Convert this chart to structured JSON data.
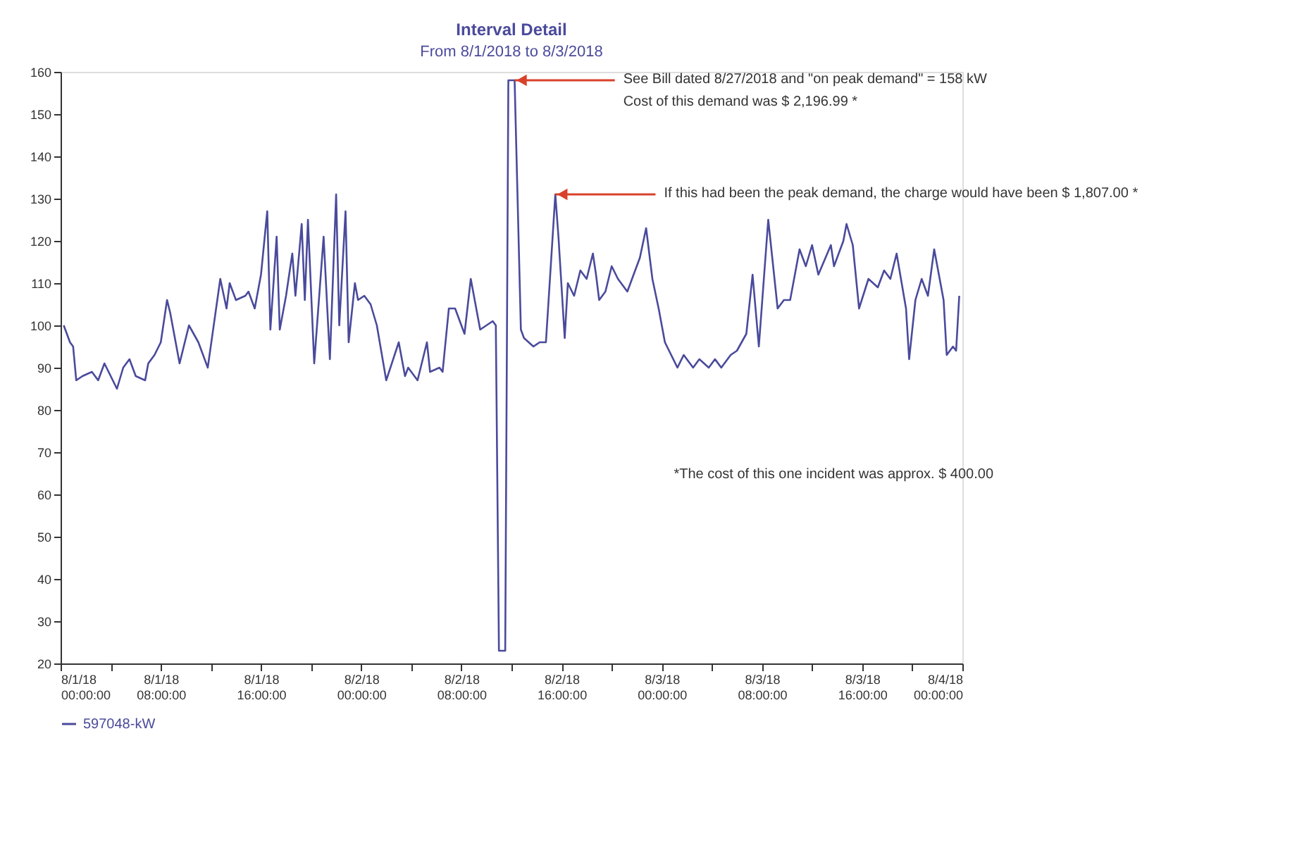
{
  "chart_data": {
    "type": "line",
    "title": "Interval Detail",
    "subtitle": "From 8/1/2018 to 8/3/2018",
    "xlim": [
      "2018-08-01T00:00",
      "2018-08-04T00:00"
    ],
    "xticks": [
      {
        "value": "2018-08-01T00:00",
        "label": "8/1/18 00:00:00"
      },
      {
        "value": "2018-08-01T04:00",
        "label": null
      },
      {
        "value": "2018-08-01T08:00",
        "label": "8/1/18 08:00:00"
      },
      {
        "value": "2018-08-01T12:00",
        "label": null
      },
      {
        "value": "2018-08-01T16:00",
        "label": "8/1/18 16:00:00"
      },
      {
        "value": "2018-08-01T20:00",
        "label": null
      },
      {
        "value": "2018-08-02T00:00",
        "label": "8/2/18 00:00:00"
      },
      {
        "value": "2018-08-02T04:00",
        "label": null
      },
      {
        "value": "2018-08-02T08:00",
        "label": "8/2/18 08:00:00"
      },
      {
        "value": "2018-08-02T12:00",
        "label": null
      },
      {
        "value": "2018-08-02T16:00",
        "label": "8/2/18 16:00:00"
      },
      {
        "value": "2018-08-02T20:00",
        "label": null
      },
      {
        "value": "2018-08-03T00:00",
        "label": "8/3/18 00:00:00"
      },
      {
        "value": "2018-08-03T04:00",
        "label": null
      },
      {
        "value": "2018-08-03T08:00",
        "label": "8/3/18 08:00:00"
      },
      {
        "value": "2018-08-03T12:00",
        "label": null
      },
      {
        "value": "2018-08-03T16:00",
        "label": "8/3/18 16:00:00"
      },
      {
        "value": "2018-08-03T20:00",
        "label": null
      },
      {
        "value": "2018-08-04T00:00",
        "label": "8/4/18 00:00:00"
      }
    ],
    "ylim": [
      20,
      160
    ],
    "yticks": [
      20,
      30,
      40,
      50,
      60,
      70,
      80,
      90,
      100,
      110,
      120,
      130,
      140,
      150,
      160
    ],
    "grid": false,
    "legend": "bottom",
    "x": [
      "2018-08-01T00:15",
      "2018-08-01T00:45",
      "2018-08-01T01:00",
      "2018-08-01T01:15",
      "2018-08-01T01:45",
      "2018-08-01T02:30",
      "2018-08-01T03:00",
      "2018-08-01T03:30",
      "2018-08-01T04:00",
      "2018-08-01T04:30",
      "2018-08-01T05:00",
      "2018-08-01T05:30",
      "2018-08-01T06:00",
      "2018-08-01T06:45",
      "2018-08-01T07:00",
      "2018-08-01T07:30",
      "2018-08-01T08:00",
      "2018-08-01T08:30",
      "2018-08-01T08:45",
      "2018-08-01T09:30",
      "2018-08-01T10:15",
      "2018-08-01T11:00",
      "2018-08-01T11:45",
      "2018-08-01T12:45",
      "2018-08-01T13:15",
      "2018-08-01T13:30",
      "2018-08-01T14:00",
      "2018-08-01T14:45",
      "2018-08-01T15:00",
      "2018-08-01T15:30",
      "2018-08-01T16:00",
      "2018-08-01T16:30",
      "2018-08-01T16:45",
      "2018-08-01T17:15",
      "2018-08-01T17:30",
      "2018-08-01T18:00",
      "2018-08-01T18:30",
      "2018-08-01T18:45",
      "2018-08-01T19:15",
      "2018-08-01T19:30",
      "2018-08-01T19:45",
      "2018-08-01T20:15",
      "2018-08-01T21:00",
      "2018-08-01T21:30",
      "2018-08-01T22:00",
      "2018-08-01T22:15",
      "2018-08-01T22:45",
      "2018-08-01T23:00",
      "2018-08-01T23:30",
      "2018-08-01T23:45",
      "2018-08-02T00:15",
      "2018-08-02T00:45",
      "2018-08-02T01:15",
      "2018-08-02T02:00",
      "2018-08-02T03:00",
      "2018-08-02T03:30",
      "2018-08-02T03:45",
      "2018-08-02T04:30",
      "2018-08-02T05:15",
      "2018-08-02T05:30",
      "2018-08-02T06:15",
      "2018-08-02T06:30",
      "2018-08-02T07:00",
      "2018-08-02T07:30",
      "2018-08-02T08:15",
      "2018-08-02T08:45",
      "2018-08-02T09:30",
      "2018-08-02T10:00",
      "2018-08-02T10:30",
      "2018-08-02T10:45",
      "2018-08-02T11:00",
      "2018-08-02T11:30",
      "2018-08-02T11:45",
      "2018-08-02T12:15",
      "2018-08-02T12:45",
      "2018-08-02T13:00",
      "2018-08-02T13:45",
      "2018-08-02T14:15",
      "2018-08-02T14:45",
      "2018-08-02T15:30",
      "2018-08-02T15:45",
      "2018-08-02T16:15",
      "2018-08-02T16:30",
      "2018-08-02T17:00",
      "2018-08-02T17:30",
      "2018-08-02T18:00",
      "2018-08-02T18:30",
      "2018-08-02T18:45",
      "2018-08-02T19:00",
      "2018-08-02T19:30",
      "2018-08-02T20:00",
      "2018-08-02T20:30",
      "2018-08-02T21:15",
      "2018-08-02T22:15",
      "2018-08-02T22:45",
      "2018-08-02T23:15",
      "2018-08-02T23:45",
      "2018-08-03T00:15",
      "2018-08-03T00:45",
      "2018-08-03T01:15",
      "2018-08-03T01:45",
      "2018-08-03T02:30",
      "2018-08-03T03:00",
      "2018-08-03T03:45",
      "2018-08-03T04:15",
      "2018-08-03T04:45",
      "2018-08-03T05:30",
      "2018-08-03T06:00",
      "2018-08-03T06:45",
      "2018-08-03T07:15",
      "2018-08-03T07:45",
      "2018-08-03T08:30",
      "2018-08-03T09:15",
      "2018-08-03T09:45",
      "2018-08-03T10:15",
      "2018-08-03T11:00",
      "2018-08-03T11:30",
      "2018-08-03T12:00",
      "2018-08-03T12:30",
      "2018-08-03T13:30",
      "2018-08-03T13:45",
      "2018-08-03T14:30",
      "2018-08-03T14:45",
      "2018-08-03T15:15",
      "2018-08-03T15:45",
      "2018-08-03T16:30",
      "2018-08-03T17:15",
      "2018-08-03T17:45",
      "2018-08-03T18:15",
      "2018-08-03T18:45",
      "2018-08-03T19:30",
      "2018-08-03T19:45",
      "2018-08-03T20:15",
      "2018-08-03T20:45",
      "2018-08-03T21:15",
      "2018-08-03T21:45",
      "2018-08-03T22:30",
      "2018-08-03T22:45",
      "2018-08-03T23:15",
      "2018-08-03T23:30",
      "2018-08-03T23:45"
    ],
    "series": [
      {
        "name": "597048-kW",
        "color": "#4a4a9c",
        "values": [
          100,
          96,
          95,
          87,
          88,
          89,
          87,
          91,
          88,
          85,
          90,
          92,
          88,
          87,
          91,
          93,
          96,
          106,
          103,
          91,
          100,
          96,
          90,
          111,
          104,
          110,
          106,
          107,
          108,
          104,
          112,
          127,
          99,
          121,
          99,
          107,
          117,
          107,
          124,
          106,
          125,
          91,
          121,
          92,
          131,
          100,
          127,
          96,
          110,
          106,
          107,
          105,
          100,
          87,
          96,
          88,
          90,
          87,
          96,
          89,
          90,
          89,
          104,
          104,
          98,
          111,
          99,
          100,
          101,
          100,
          23,
          23,
          158,
          158,
          99,
          97,
          95,
          96,
          96,
          131,
          121,
          97,
          110,
          107,
          113,
          111,
          117,
          112,
          106,
          108,
          114,
          111,
          108,
          116,
          123,
          111,
          104,
          96,
          93,
          90,
          93,
          90,
          92,
          90,
          92,
          90,
          93,
          94,
          98,
          112,
          95,
          125,
          104,
          106,
          106,
          118,
          114,
          119,
          112,
          119,
          114,
          120,
          124,
          119,
          104,
          111,
          109,
          113,
          111,
          117,
          104,
          92,
          106,
          111,
          107,
          118,
          106,
          93,
          95,
          94,
          107
        ]
      }
    ],
    "annotations": [
      {
        "text": "See Bill dated 8/27/2018 and \"on peak demand\" = 158 kW\nCost of this demand was $ 2,196.99 *",
        "x": "2018-08-02T12:15",
        "y": 158
      },
      {
        "text": "If this had been the peak demand, the charge would have been $ 1,807.00 *",
        "x": "2018-08-02T15:30",
        "y": 131
      },
      "*The cost of this one incident was approx. $ 400.00"
    ]
  }
}
